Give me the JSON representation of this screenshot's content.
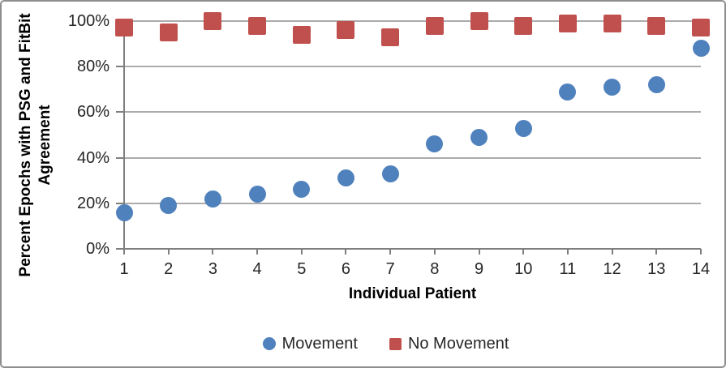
{
  "chart_data": {
    "type": "scatter",
    "title": "",
    "xlabel": "Individual Patient",
    "ylabel": "Percent Epochs with PSG and FitBit Agreement",
    "ylabel_lines": [
      "Percent Epochs with PSG and FitBit",
      "Agreement"
    ],
    "x": [
      1,
      2,
      3,
      4,
      5,
      6,
      7,
      8,
      9,
      10,
      11,
      12,
      13,
      14
    ],
    "xticklabels": [
      "1",
      "2",
      "3",
      "4",
      "5",
      "6",
      "7",
      "8",
      "9",
      "10",
      "11",
      "12",
      "13",
      "14"
    ],
    "series": [
      {
        "name": "Movement",
        "marker": "circle",
        "color": "#4F81BD",
        "values": [
          16,
          19,
          22,
          24,
          26,
          31,
          33,
          46,
          49,
          53,
          69,
          71,
          72,
          88
        ]
      },
      {
        "name": "No Movement",
        "marker": "square",
        "color": "#C0504D",
        "values": [
          97,
          95,
          100,
          98,
          94,
          96,
          93,
          98,
          100,
          98,
          99,
          99,
          98,
          97
        ]
      }
    ],
    "ylim": [
      0,
      100
    ],
    "yticks": [
      0,
      20,
      40,
      60,
      80,
      100
    ],
    "yticklabels": [
      "0%",
      "20%",
      "40%",
      "60%",
      "80%",
      "100%"
    ],
    "grid": true,
    "legend_position": "bottom"
  },
  "style": {
    "movement_color": "#4F81BD",
    "no_movement_color": "#C0504D",
    "gridline_color": "#ABABAB",
    "axis_color": "#7F7F7F",
    "text_color": "#262626",
    "border_color": "#8E8E8E",
    "background": "#FFFFFF"
  }
}
